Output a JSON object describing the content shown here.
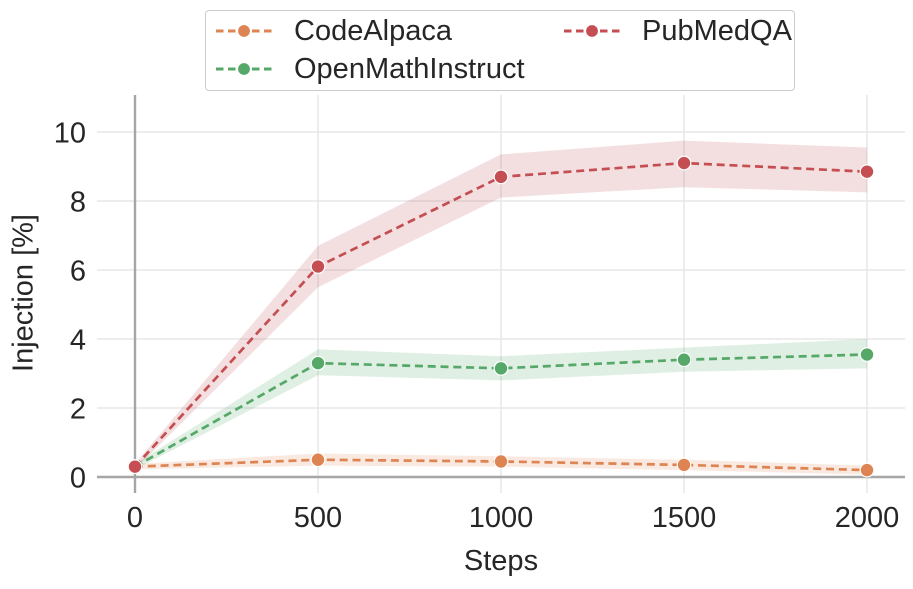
{
  "colors": {
    "background": "#ffffff",
    "grid": "#e7e7e7",
    "spine": "#a6a6a6",
    "text": "#262626",
    "legend_border": "#cccccc",
    "marker_edge": "#ffffff"
  },
  "chart_data": {
    "type": "line",
    "title": "",
    "xlabel": "Steps",
    "ylabel": "Injection [%]",
    "x": [
      0,
      500,
      1000,
      1500,
      2000
    ],
    "x_tick_labels": [
      "0",
      "500",
      "1000",
      "1500",
      "2000"
    ],
    "y_tick_values": [
      0,
      2,
      4,
      6,
      8,
      10
    ],
    "y_tick_labels": [
      "0",
      "2",
      "4",
      "6",
      "8",
      "10"
    ],
    "xlim": [
      -100,
      2100
    ],
    "ylim": [
      -0.45,
      11.1
    ],
    "grid": true,
    "legend_position": "top",
    "line_style": "dashed",
    "band_opacity": 0.18,
    "series": [
      {
        "name": "CodeAlpaca",
        "color": "#dd8452",
        "values": [
          0.3,
          0.5,
          0.45,
          0.35,
          0.2
        ],
        "band_lower": [
          0.22,
          0.33,
          0.3,
          0.2,
          0.07
        ],
        "band_upper": [
          0.38,
          0.68,
          0.6,
          0.5,
          0.33
        ]
      },
      {
        "name": "OpenMathInstruct",
        "color": "#55a868",
        "values": [
          0.3,
          3.3,
          3.15,
          3.4,
          3.55
        ],
        "band_lower": [
          0.22,
          2.95,
          2.8,
          3.05,
          3.15
        ],
        "band_upper": [
          0.38,
          3.7,
          3.5,
          3.75,
          4.0
        ]
      },
      {
        "name": "PubMedQA",
        "color": "#c44e52",
        "values": [
          0.3,
          6.1,
          8.7,
          9.1,
          8.85
        ],
        "band_lower": [
          0.22,
          5.5,
          8.1,
          8.4,
          8.25
        ],
        "band_upper": [
          0.38,
          6.7,
          9.35,
          9.75,
          9.55
        ]
      }
    ]
  }
}
